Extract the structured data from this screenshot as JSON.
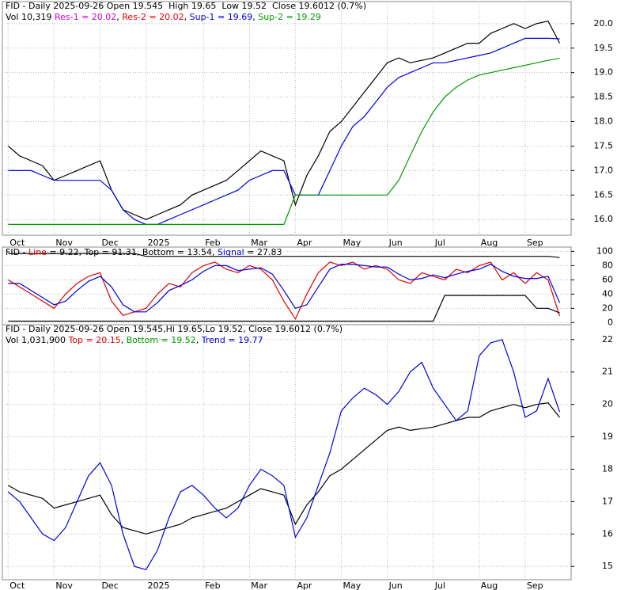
{
  "chart_data": [
    {
      "type": "line",
      "header": [
        [
          {
            "text": "FID - Daily 2025-09-26 Open 19.545  High 19.65  Low 19.52  Close 19.6012 (0.7%)",
            "color": "#000000"
          }
        ],
        [
          {
            "text": "Vol 10,319 ",
            "color": "#000000"
          },
          {
            "text": "Res-1 = 20.02",
            "color": "#cc00cc"
          },
          {
            "text": ", ",
            "color": "#000000"
          },
          {
            "text": "Res-2 = 20.02",
            "color": "#e00000"
          },
          {
            "text": ", ",
            "color": "#000000"
          },
          {
            "text": "Sup-1 = 19.69",
            "color": "#0000e0"
          },
          {
            "text": ", ",
            "color": "#000000"
          },
          {
            "text": "Sup-2 = 19.29",
            "color": "#009900"
          }
        ]
      ],
      "xlim": [
        -0.5,
        49
      ],
      "xticks": [
        {
          "value": 0,
          "label": "Oct"
        },
        {
          "value": 4,
          "label": "Nov"
        },
        {
          "value": 8,
          "label": "Dec"
        },
        {
          "value": 12,
          "label": "2025"
        },
        {
          "value": 17,
          "label": "Feb"
        },
        {
          "value": 21,
          "label": "Mar"
        },
        {
          "value": 25,
          "label": "Apr"
        },
        {
          "value": 29,
          "label": "May"
        },
        {
          "value": 33,
          "label": "Jun"
        },
        {
          "value": 37,
          "label": "Jul"
        },
        {
          "value": 41,
          "label": "Aug"
        },
        {
          "value": 45,
          "label": "Sep"
        }
      ],
      "ylim": [
        15.68,
        20.45
      ],
      "yticks": [
        {
          "value": 16,
          "label": "16.0"
        },
        {
          "value": 16.5,
          "label": "16.5"
        },
        {
          "value": 17,
          "label": "17.0"
        },
        {
          "value": 17.5,
          "label": "17.5"
        },
        {
          "value": 18,
          "label": "18.0"
        },
        {
          "value": 18.5,
          "label": "18.5"
        },
        {
          "value": 19,
          "label": "19.0"
        },
        {
          "value": 19.5,
          "label": "19.5"
        },
        {
          "value": 20,
          "label": "20.0"
        }
      ],
      "grid": true,
      "series": [
        {
          "color": "#000000",
          "values": [
            17.5,
            17.3,
            17.2,
            17.1,
            16.8,
            16.9,
            17.0,
            17.1,
            17.2,
            16.6,
            16.2,
            16.1,
            16.0,
            16.1,
            16.2,
            16.3,
            16.5,
            16.6,
            16.7,
            16.8,
            17.0,
            17.2,
            17.4,
            17.3,
            17.2,
            16.3,
            16.9,
            17.3,
            17.8,
            18.0,
            18.3,
            18.6,
            18.9,
            19.2,
            19.3,
            19.2,
            19.25,
            19.3,
            19.4,
            19.5,
            19.6,
            19.6,
            19.8,
            19.9,
            20.0,
            19.9,
            20.0,
            20.05,
            19.6012
          ]
        },
        {
          "color": "#0000e0",
          "values": [
            17.0,
            17.0,
            17.0,
            16.9,
            16.8,
            16.8,
            16.8,
            16.8,
            16.8,
            16.6,
            16.2,
            16.0,
            15.9,
            15.9,
            16.0,
            16.1,
            16.2,
            16.3,
            16.4,
            16.5,
            16.6,
            16.8,
            16.9,
            17.0,
            17.0,
            16.5,
            16.5,
            16.5,
            17.0,
            17.5,
            17.9,
            18.1,
            18.4,
            18.7,
            18.9,
            19.0,
            19.1,
            19.2,
            19.2,
            19.25,
            19.3,
            19.35,
            19.4,
            19.5,
            19.6,
            19.7,
            19.7,
            19.7,
            19.69
          ]
        },
        {
          "color": "#009900",
          "values": [
            15.9,
            15.9,
            15.9,
            15.9,
            15.9,
            15.9,
            15.9,
            15.9,
            15.9,
            15.9,
            15.9,
            15.9,
            15.9,
            15.9,
            15.9,
            15.9,
            15.9,
            15.9,
            15.9,
            15.9,
            15.9,
            15.9,
            15.9,
            15.9,
            15.9,
            16.5,
            16.5,
            16.5,
            16.5,
            16.5,
            16.5,
            16.5,
            16.5,
            16.5,
            16.8,
            17.3,
            17.8,
            18.2,
            18.5,
            18.7,
            18.85,
            18.95,
            19.0,
            19.05,
            19.1,
            19.15,
            19.2,
            19.25,
            19.29
          ]
        }
      ]
    },
    {
      "type": "line",
      "header": [
        [
          {
            "text": "FID - ",
            "color": "#000000"
          },
          {
            "text": "Line",
            "color": "#e00000"
          },
          {
            "text": " = 9.22, Top = 91.31, Bottom = 13.54, ",
            "color": "#000000"
          },
          {
            "text": "Signal",
            "color": "#0000e0"
          },
          {
            "text": " = 27.83",
            "color": "#000000"
          }
        ]
      ],
      "xlim": [
        -0.5,
        49
      ],
      "ylim": [
        -3,
        106
      ],
      "yticks": [
        0,
        20,
        40,
        60,
        80,
        100
      ],
      "grid": true,
      "series": [
        {
          "color": "#e00000",
          "values": [
            60,
            50,
            40,
            30,
            20,
            40,
            55,
            65,
            70,
            30,
            10,
            15,
            20,
            40,
            55,
            50,
            70,
            80,
            85,
            75,
            70,
            80,
            75,
            60,
            30,
            5,
            40,
            70,
            85,
            80,
            85,
            75,
            80,
            75,
            60,
            55,
            70,
            65,
            60,
            75,
            70,
            80,
            85,
            60,
            70,
            55,
            70,
            60,
            9.22
          ]
        },
        {
          "color": "#0000e0",
          "values": [
            55,
            55,
            45,
            35,
            25,
            30,
            45,
            58,
            65,
            50,
            25,
            15,
            15,
            28,
            45,
            52,
            60,
            72,
            80,
            80,
            73,
            75,
            77,
            68,
            45,
            20,
            25,
            50,
            75,
            82,
            82,
            80,
            78,
            78,
            68,
            60,
            62,
            67,
            63,
            68,
            72,
            75,
            82,
            72,
            65,
            62,
            62,
            65,
            27.83
          ]
        },
        {
          "color": "#000000",
          "values": [
            97,
            97,
            97,
            97,
            97,
            97,
            97,
            97,
            97,
            97,
            97,
            97,
            93,
            93,
            93,
            93,
            93,
            93,
            93,
            93,
            93,
            93,
            93,
            93,
            93,
            93,
            93,
            93,
            93,
            93,
            93,
            93,
            93,
            93,
            93,
            93,
            93,
            93,
            93,
            93,
            93,
            93,
            93,
            93,
            93,
            93,
            93,
            93,
            91.31
          ]
        },
        {
          "color": "#000000",
          "values": [
            2,
            2,
            2,
            2,
            2,
            2,
            2,
            2,
            2,
            2,
            2,
            2,
            2,
            2,
            2,
            2,
            2,
            2,
            2,
            2,
            2,
            2,
            2,
            2,
            2,
            2,
            2,
            2,
            2,
            2,
            2,
            2,
            2,
            2,
            2,
            2,
            2,
            2,
            38,
            38,
            38,
            38,
            38,
            38,
            38,
            38,
            20,
            20,
            13.54
          ]
        }
      ]
    },
    {
      "type": "line",
      "header": [
        [
          {
            "text": "FID - Daily 2025-09-26 Open 19.545,Hi 19.65,Lo 19.52, Close 19.6012 (0.7%)",
            "color": "#000000"
          }
        ],
        [
          {
            "text": "Vol 1,031,900 ",
            "color": "#000000"
          },
          {
            "text": "Top = 20.15",
            "color": "#e00000"
          },
          {
            "text": ", ",
            "color": "#000000"
          },
          {
            "text": "Bottom = 19.52",
            "color": "#009900"
          },
          {
            "text": ", ",
            "color": "#000000"
          },
          {
            "text": "Trend = 19.77",
            "color": "#0000e0"
          }
        ]
      ],
      "xlim": [
        -0.5,
        49
      ],
      "xticks": [
        {
          "value": 0,
          "label": "Oct"
        },
        {
          "value": 4,
          "label": "Nov"
        },
        {
          "value": 8,
          "label": "Dec"
        },
        {
          "value": 12,
          "label": "2025"
        },
        {
          "value": 17,
          "label": "Feb"
        },
        {
          "value": 21,
          "label": "Mar"
        },
        {
          "value": 25,
          "label": "Apr"
        },
        {
          "value": 29,
          "label": "May"
        },
        {
          "value": 33,
          "label": "Jun"
        },
        {
          "value": 37,
          "label": "Jul"
        },
        {
          "value": 41,
          "label": "Aug"
        },
        {
          "value": 45,
          "label": "Sep"
        }
      ],
      "ylim": [
        14.59,
        22.46
      ],
      "yticks": [
        15,
        16,
        17,
        18,
        19,
        20,
        21,
        22
      ],
      "grid": true,
      "series": [
        {
          "color": "#000000",
          "values": [
            17.5,
            17.3,
            17.2,
            17.1,
            16.8,
            16.9,
            17.0,
            17.1,
            17.2,
            16.6,
            16.2,
            16.1,
            16.0,
            16.1,
            16.2,
            16.3,
            16.5,
            16.6,
            16.7,
            16.8,
            17.0,
            17.2,
            17.4,
            17.3,
            17.2,
            16.3,
            16.9,
            17.3,
            17.8,
            18.0,
            18.3,
            18.6,
            18.9,
            19.2,
            19.3,
            19.2,
            19.25,
            19.3,
            19.4,
            19.5,
            19.6,
            19.6,
            19.8,
            19.9,
            20.0,
            19.9,
            20.0,
            20.05,
            19.6012
          ]
        },
        {
          "color": "#0000e0",
          "values": [
            17.3,
            17.0,
            16.5,
            16.0,
            15.8,
            16.2,
            17.0,
            17.8,
            18.2,
            17.5,
            16.0,
            15.0,
            14.9,
            15.5,
            16.5,
            17.3,
            17.5,
            17.2,
            16.8,
            16.5,
            16.8,
            17.5,
            18.0,
            17.8,
            17.5,
            15.9,
            16.5,
            17.5,
            18.5,
            19.8,
            20.2,
            20.5,
            20.3,
            20.0,
            20.4,
            21.0,
            21.3,
            20.5,
            20.0,
            19.5,
            19.8,
            21.5,
            21.9,
            22.0,
            21.0,
            19.6,
            19.8,
            20.8,
            19.77
          ]
        }
      ]
    }
  ]
}
